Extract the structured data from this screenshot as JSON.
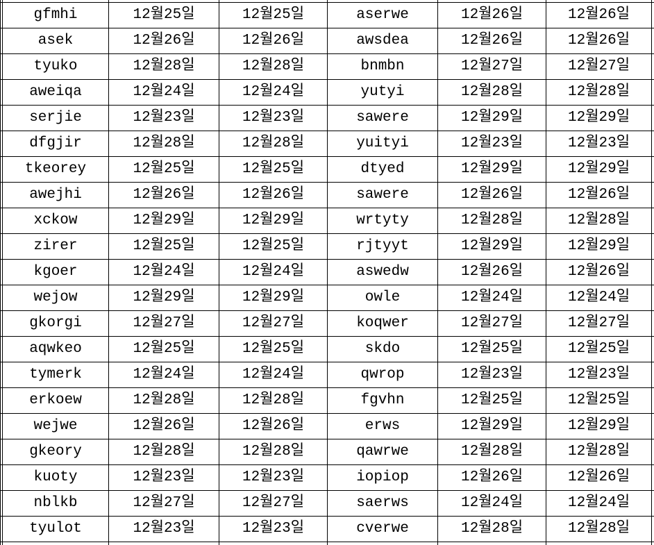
{
  "style": {
    "border_color": "#000000",
    "text_color": "#000000",
    "background_color": "#ffffff"
  },
  "table": {
    "column_kinds": [
      "name",
      "date",
      "date",
      "name",
      "date",
      "date"
    ],
    "rows": [
      [
        "gfmhi",
        "12월25일",
        "12월25일",
        "aserwe",
        "12월26일",
        "12월26일"
      ],
      [
        "asek",
        "12월26일",
        "12월26일",
        "awsdea",
        "12월26일",
        "12월26일"
      ],
      [
        "tyuko",
        "12월28일",
        "12월28일",
        "bnmbn",
        "12월27일",
        "12월27일"
      ],
      [
        "aweiqa",
        "12월24일",
        "12월24일",
        "yutyi",
        "12월28일",
        "12월28일"
      ],
      [
        "serjie",
        "12월23일",
        "12월23일",
        "sawere",
        "12월29일",
        "12월29일"
      ],
      [
        "dfgjir",
        "12월28일",
        "12월28일",
        "yuityi",
        "12월23일",
        "12월23일"
      ],
      [
        "tkeorey",
        "12월25일",
        "12월25일",
        "dtyed",
        "12월29일",
        "12월29일"
      ],
      [
        "awejhi",
        "12월26일",
        "12월26일",
        "sawere",
        "12월26일",
        "12월26일"
      ],
      [
        "xckow",
        "12월29일",
        "12월29일",
        "wrtyty",
        "12월28일",
        "12월28일"
      ],
      [
        "zirer",
        "12월25일",
        "12월25일",
        "rjtyyt",
        "12월29일",
        "12월29일"
      ],
      [
        "kgoer",
        "12월24일",
        "12월24일",
        "aswedw",
        "12월26일",
        "12월26일"
      ],
      [
        "wejow",
        "12월29일",
        "12월29일",
        "owle",
        "12월24일",
        "12월24일"
      ],
      [
        "gkorgi",
        "12월27일",
        "12월27일",
        "koqwer",
        "12월27일",
        "12월27일"
      ],
      [
        "aqwkeo",
        "12월25일",
        "12월25일",
        "skdo",
        "12월25일",
        "12월25일"
      ],
      [
        "tymerk",
        "12월24일",
        "12월24일",
        "qwrop",
        "12월23일",
        "12월23일"
      ],
      [
        "erkoew",
        "12월28일",
        "12월28일",
        "fgvhn",
        "12월25일",
        "12월25일"
      ],
      [
        "wejwe",
        "12월26일",
        "12월26일",
        "erws",
        "12월29일",
        "12월29일"
      ],
      [
        "gkeory",
        "12월28일",
        "12월28일",
        "qawrwe",
        "12월28일",
        "12월28일"
      ],
      [
        "kuoty",
        "12월23일",
        "12월23일",
        "iopiop",
        "12월26일",
        "12월26일"
      ],
      [
        "nblkb",
        "12월27일",
        "12월27일",
        "saerws",
        "12월24일",
        "12월24일"
      ],
      [
        "tyulot",
        "12월23일",
        "12월23일",
        "cverwe",
        "12월28일",
        "12월28일"
      ]
    ]
  }
}
